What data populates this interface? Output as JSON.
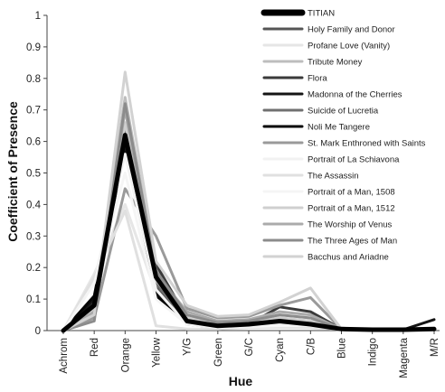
{
  "chart_data": {
    "type": "line",
    "title": "",
    "xlabel": "Hue",
    "ylabel": "Coefficient of Presence",
    "ylim": [
      0,
      1
    ],
    "yticks": [
      "0",
      "0.1",
      "0.2",
      "0.3",
      "0.4",
      "0.5",
      "0.6",
      "0.7",
      "0.8",
      "0.9",
      "1"
    ],
    "categories": [
      "Achrom",
      "Red",
      "Orange",
      "Yellow",
      "Y/G",
      "Green",
      "G/C",
      "Cyan",
      "C/B",
      "Blue",
      "Indigo",
      "Magenta",
      "M/R"
    ],
    "legend_position": "top-right",
    "grid": false,
    "series": [
      {
        "name": "TITIAN",
        "color": "#000000",
        "width": 5,
        "values": [
          0.0,
          0.08,
          0.62,
          0.17,
          0.03,
          0.015,
          0.02,
          0.03,
          0.02,
          0.005,
          0.003,
          0.003,
          0.005
        ]
      },
      {
        "name": "Holy Family and Donor",
        "color": "#555555",
        "width": 3,
        "values": [
          0.0,
          0.05,
          0.65,
          0.14,
          0.02,
          0.01,
          0.015,
          0.02,
          0.015,
          0.005,
          0.003,
          0.003,
          0.004
        ]
      },
      {
        "name": "Profane Love (Vanity)",
        "color": "#e6e6e6",
        "width": 3,
        "values": [
          0.0,
          0.18,
          0.4,
          0.12,
          0.03,
          0.02,
          0.02,
          0.04,
          0.03,
          0.005,
          0.003,
          0.003,
          0.005
        ]
      },
      {
        "name": "Tribute Money",
        "color": "#bdbdbd",
        "width": 3,
        "values": [
          0.0,
          0.07,
          0.74,
          0.2,
          0.03,
          0.015,
          0.02,
          0.04,
          0.03,
          0.005,
          0.003,
          0.003,
          0.005
        ]
      },
      {
        "name": "Flora",
        "color": "#3a3a3a",
        "width": 3,
        "values": [
          0.0,
          0.09,
          0.6,
          0.21,
          0.04,
          0.015,
          0.02,
          0.075,
          0.06,
          0.005,
          0.003,
          0.003,
          0.004
        ]
      },
      {
        "name": "Madonna of the Cherries",
        "color": "#141414",
        "width": 3,
        "values": [
          0.0,
          0.1,
          0.58,
          0.12,
          0.025,
          0.01,
          0.015,
          0.02,
          0.025,
          0.005,
          0.003,
          0.003,
          0.035
        ]
      },
      {
        "name": "Suicide of Lucretia",
        "color": "#707070",
        "width": 3,
        "values": [
          0.0,
          0.05,
          0.63,
          0.15,
          0.03,
          0.015,
          0.02,
          0.03,
          0.02,
          0.005,
          0.003,
          0.003,
          0.005
        ]
      },
      {
        "name": "Noli Me Tangere",
        "color": "#050505",
        "width": 3,
        "values": [
          0.0,
          0.11,
          0.61,
          0.11,
          0.03,
          0.015,
          0.02,
          0.025,
          0.02,
          0.005,
          0.003,
          0.003,
          0.005
        ]
      },
      {
        "name": "St. Mark Enthroned with Saints",
        "color": "#9a9a9a",
        "width": 3,
        "values": [
          0.0,
          0.04,
          0.45,
          0.3,
          0.07,
          0.04,
          0.045,
          0.08,
          0.105,
          0.005,
          0.003,
          0.003,
          0.005
        ]
      },
      {
        "name": "Portrait of La Schiavona",
        "color": "#f2f2f2",
        "width": 3,
        "values": [
          0.0,
          0.16,
          0.56,
          0.13,
          0.02,
          0.01,
          0.015,
          0.02,
          0.02,
          0.005,
          0.003,
          0.003,
          0.004
        ]
      },
      {
        "name": "The Assassin",
        "color": "#e0e0e0",
        "width": 3,
        "values": [
          0.0,
          0.17,
          0.38,
          0.015,
          0.005,
          0.005,
          0.01,
          0.01,
          0.01,
          0.003,
          0.002,
          0.002,
          0.003
        ]
      },
      {
        "name": "Portrait of a Man, 1508",
        "color": "#f5f5f5",
        "width": 3,
        "values": [
          0.0,
          0.15,
          0.5,
          0.1,
          0.02,
          0.01,
          0.012,
          0.015,
          0.015,
          0.004,
          0.002,
          0.002,
          0.004
        ]
      },
      {
        "name": "Portrait of a Man, 1512",
        "color": "#cfcfcf",
        "width": 3,
        "values": [
          0.0,
          0.07,
          0.66,
          0.16,
          0.04,
          0.02,
          0.025,
          0.04,
          0.03,
          0.005,
          0.003,
          0.003,
          0.005
        ]
      },
      {
        "name": "The Worship of Venus",
        "color": "#ababab",
        "width": 3,
        "values": [
          0.0,
          0.06,
          0.7,
          0.18,
          0.06,
          0.03,
          0.035,
          0.06,
          0.05,
          0.005,
          0.003,
          0.003,
          0.005
        ]
      },
      {
        "name": "The Three Ages of Man",
        "color": "#8c8c8c",
        "width": 3,
        "values": [
          0.0,
          0.03,
          0.72,
          0.19,
          0.05,
          0.025,
          0.03,
          0.05,
          0.04,
          0.005,
          0.003,
          0.003,
          0.005
        ]
      },
      {
        "name": "Bacchus and Ariadne",
        "color": "#d2d2d2",
        "width": 3,
        "values": [
          0.0,
          0.05,
          0.82,
          0.22,
          0.08,
          0.045,
          0.05,
          0.09,
          0.135,
          0.005,
          0.003,
          0.003,
          0.006
        ]
      }
    ]
  }
}
